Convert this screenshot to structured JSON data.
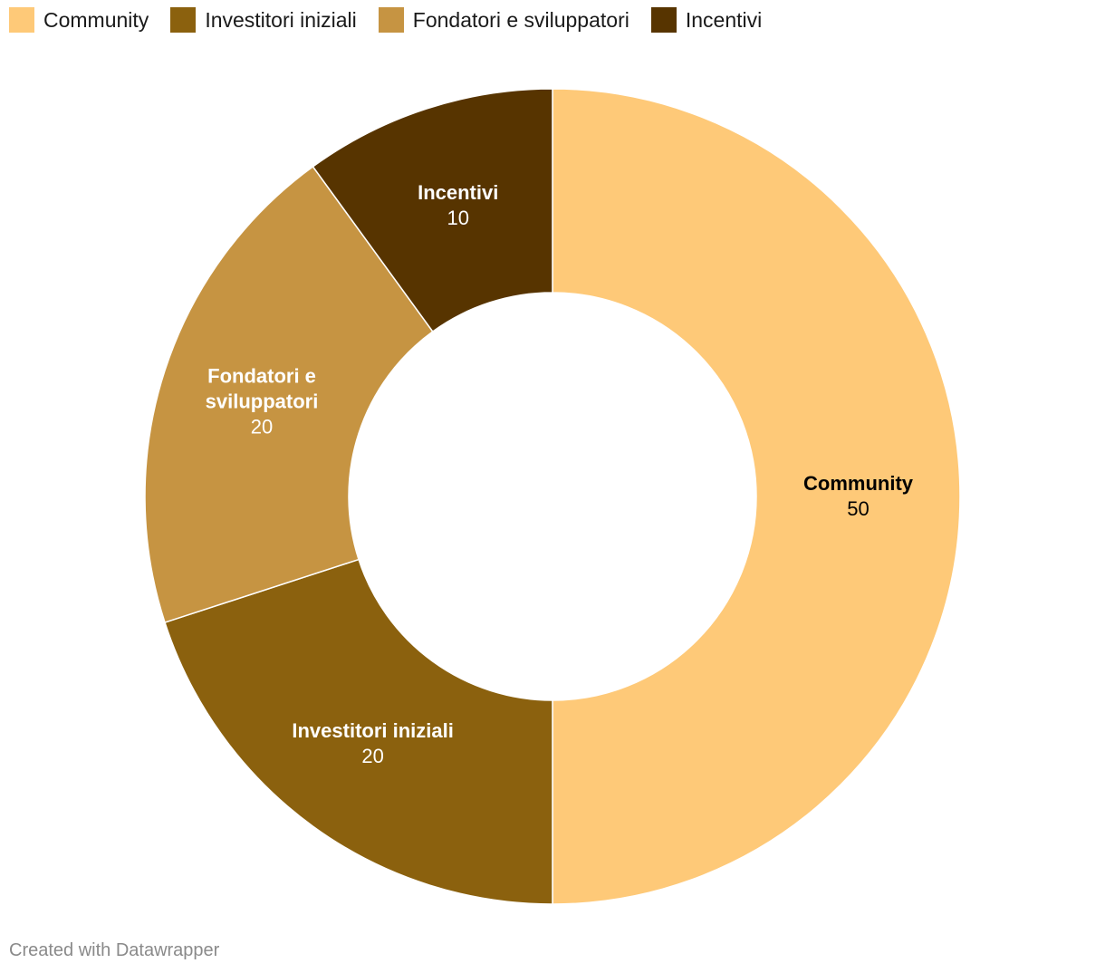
{
  "chart_data": {
    "type": "pie",
    "variant": "donut",
    "legend_position": "top-left",
    "slices": [
      {
        "name": "Community",
        "value": 50,
        "color": "#fec978",
        "label_color": "#000000",
        "label_lines": [
          "Community"
        ]
      },
      {
        "name": "Investitori iniziali",
        "value": 20,
        "color": "#8b610e",
        "label_color": "#ffffff",
        "label_lines": [
          "Investitori iniziali"
        ]
      },
      {
        "name": "Fondatori e sviluppatori",
        "value": 20,
        "color": "#c69442",
        "label_color": "#ffffff",
        "label_lines": [
          "Fondatori e",
          "sviluppatori"
        ]
      },
      {
        "name": "Incentivi",
        "value": 10,
        "color": "#573400",
        "label_color": "#ffffff",
        "label_lines": [
          "Incentivi"
        ]
      }
    ]
  },
  "footer": {
    "credit": "Created with Datawrapper"
  }
}
